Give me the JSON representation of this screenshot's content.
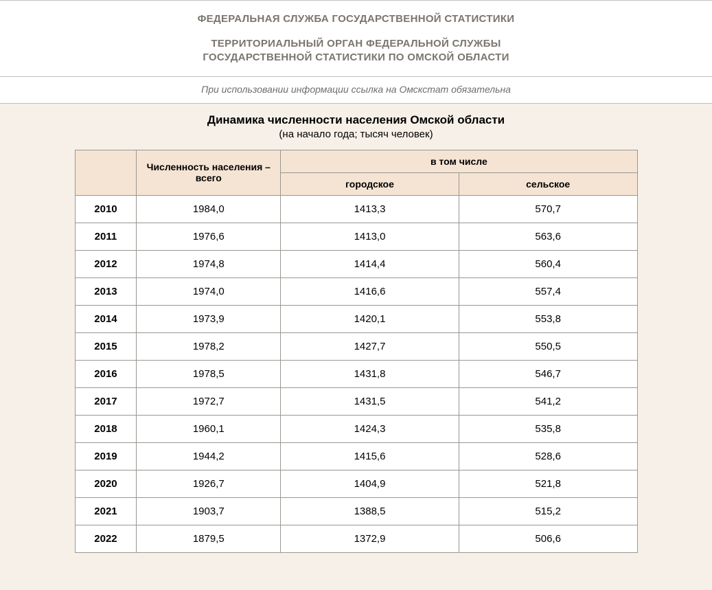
{
  "header": {
    "org_line1": "ФЕДЕРАЛЬНАЯ СЛУЖБА ГОСУДАРСТВЕННОЙ СТАТИСТИКИ",
    "org_line2a": "ТЕРРИТОРИАЛЬНЫЙ ОРГАН ФЕДЕРАЛЬНОЙ СЛУЖБЫ",
    "org_line2b": "ГОСУДАРСТВЕННОЙ СТАТИСТИКИ ПО ОМСКОЙ ОБЛАСТИ"
  },
  "notice": "При использовании информации ссылка на Омскстат обязательна",
  "title": {
    "main": "Динамика численности населения Омской области",
    "sub": "(на начало года; тысяч человек)"
  },
  "table": {
    "header_background": "#f5e4d4",
    "border_color": "#9a9690",
    "cell_background": "#ffffff",
    "columns": {
      "total_label": "Численность населения – всего",
      "including_label": "в том числе",
      "urban_label": "городское",
      "rural_label": "сельское"
    },
    "rows": [
      {
        "year": "2010",
        "total": "1984,0",
        "urban": "1413,3",
        "rural": "570,7"
      },
      {
        "year": "2011",
        "total": "1976,6",
        "urban": "1413,0",
        "rural": "563,6"
      },
      {
        "year": "2012",
        "total": "1974,8",
        "urban": "1414,4",
        "rural": "560,4"
      },
      {
        "year": "2013",
        "total": "1974,0",
        "urban": "1416,6",
        "rural": "557,4"
      },
      {
        "year": "2014",
        "total": "1973,9",
        "urban": "1420,1",
        "rural": "553,8"
      },
      {
        "year": "2015",
        "total": "1978,2",
        "urban": "1427,7",
        "rural": "550,5"
      },
      {
        "year": "2016",
        "total": "1978,5",
        "urban": "1431,8",
        "rural": "546,7"
      },
      {
        "year": "2017",
        "total": "1972,7",
        "urban": "1431,5",
        "rural": "541,2"
      },
      {
        "year": "2018",
        "total": "1960,1",
        "urban": "1424,3",
        "rural": "535,8"
      },
      {
        "year": "2019",
        "total": "1944,2",
        "urban": "1415,6",
        "rural": "528,6"
      },
      {
        "year": "2020",
        "total": "1926,7",
        "urban": "1404,9",
        "rural": "521,8"
      },
      {
        "year": "2021",
        "total": "1903,7",
        "urban": "1388,5",
        "rural": "515,2"
      },
      {
        "year": "2022",
        "total": "1879,5",
        "urban": "1372,9",
        "rural": "506,6"
      }
    ]
  },
  "style": {
    "page_background": "#f7f0e8",
    "header_text_color": "#7a756e",
    "notice_text_color": "#6d6d6d",
    "title_fontsize_pt": 13,
    "body_fontsize_pt": 11
  }
}
